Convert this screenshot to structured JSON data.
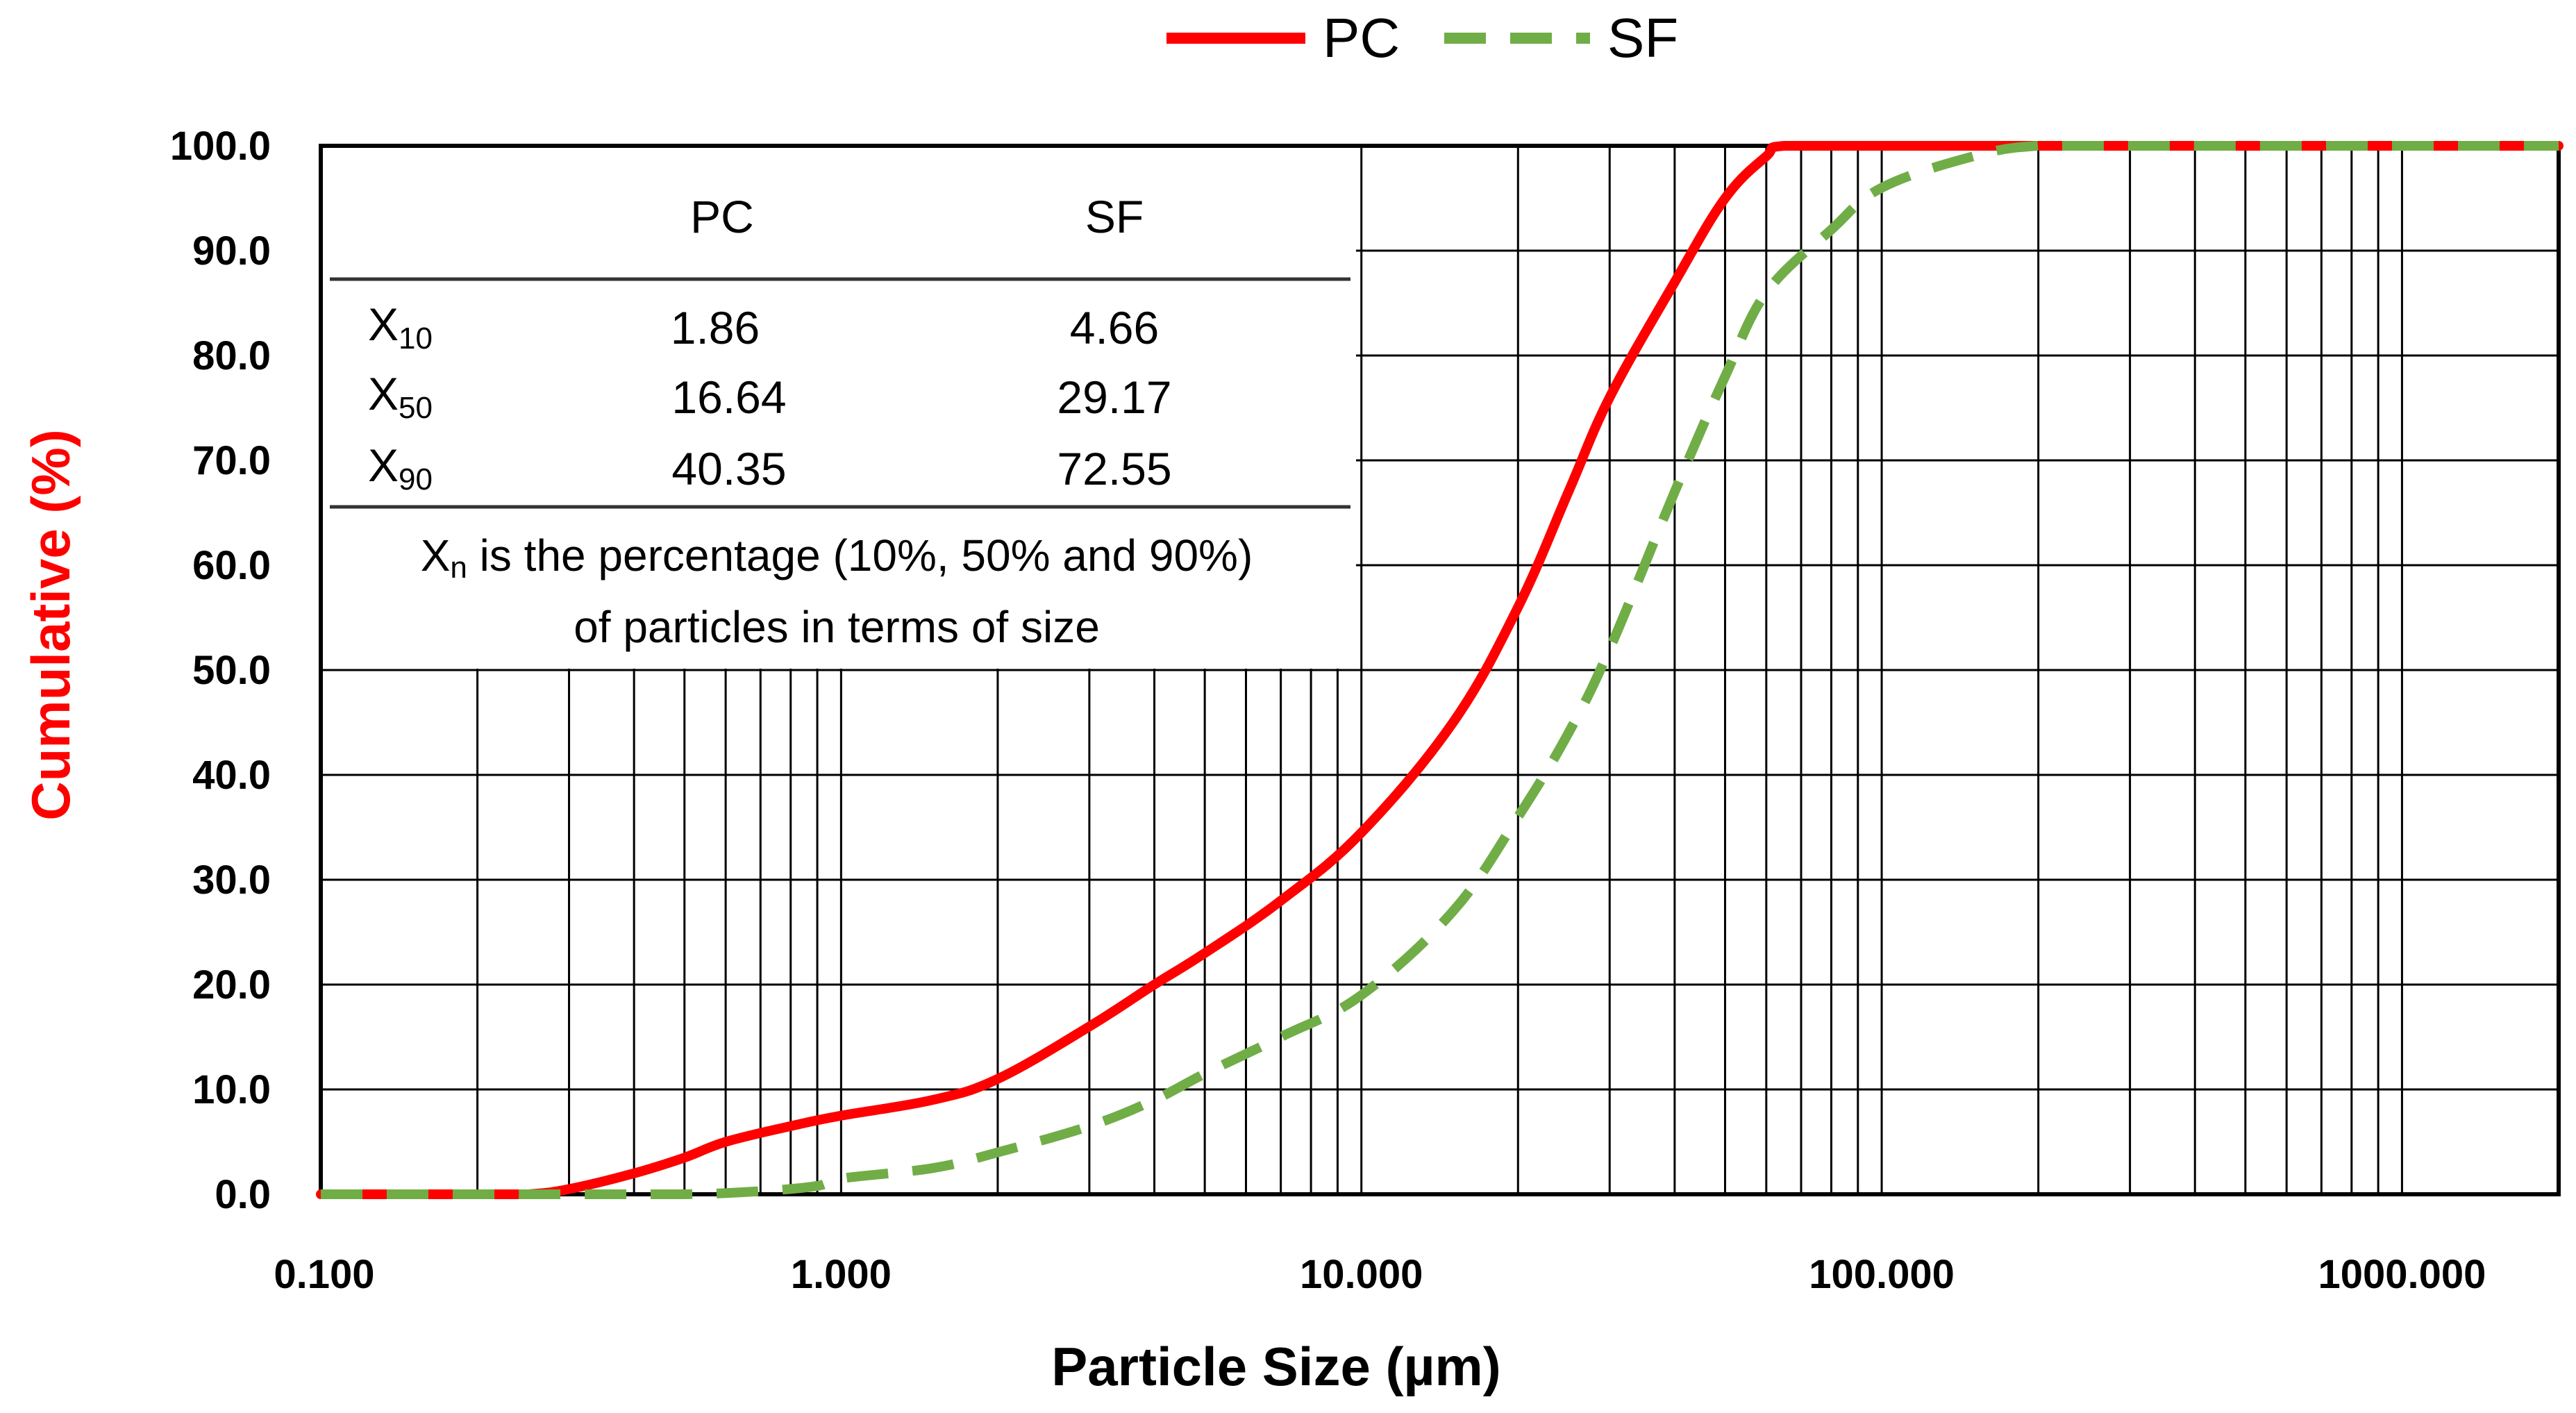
{
  "chart_data": {
    "type": "line",
    "xscale": "log",
    "xlabel": "Particle Size (µm)",
    "ylabel": "Cumulative  (%)",
    "xlim": [
      0.1,
      2000
    ],
    "ylim": [
      0,
      100
    ],
    "grid": true,
    "legend_position": "top-center",
    "x_tick_labels": [
      {
        "value": 0.1,
        "label": "0.100"
      },
      {
        "value": 1,
        "label": "1.000"
      },
      {
        "value": 10,
        "label": "10.000"
      },
      {
        "value": 100,
        "label": "100.000"
      },
      {
        "value": 1000,
        "label": "1000.000"
      }
    ],
    "y_tick_labels": [
      {
        "value": 0,
        "label": "0.0"
      },
      {
        "value": 10,
        "label": "10.0"
      },
      {
        "value": 20,
        "label": "20.0"
      },
      {
        "value": 30,
        "label": "30.0"
      },
      {
        "value": 40,
        "label": "40.0"
      },
      {
        "value": 50,
        "label": "50.0"
      },
      {
        "value": 60,
        "label": "60.0"
      },
      {
        "value": 70,
        "label": "70.0"
      },
      {
        "value": 80,
        "label": "80.0"
      },
      {
        "value": 90,
        "label": "90.0"
      },
      {
        "value": 100,
        "label": "100.0"
      }
    ],
    "series": [
      {
        "name": "PC",
        "color": "#ff0000",
        "dash": "solid",
        "x": [
          0.1,
          0.2,
          0.25,
          0.3,
          0.4,
          0.5,
          0.6,
          0.8,
          1.0,
          1.5,
          2.0,
          3.0,
          4.0,
          5.0,
          7.0,
          10.0,
          15.0,
          20.0,
          25.0,
          30.0,
          40.0,
          50.0,
          60.0,
          65.0,
          100.0,
          1000.0,
          2000.0
        ],
        "values": [
          0,
          0,
          0,
          0.5,
          2,
          3.5,
          5,
          6.5,
          7.5,
          9,
          11,
          16,
          20,
          23,
          28,
          34.5,
          45,
          56,
          67,
          76,
          87,
          95,
          99,
          100,
          100,
          100,
          100
        ]
      },
      {
        "name": "SF",
        "color": "#70ad47",
        "dash": "dashed",
        "x": [
          0.1,
          0.3,
          0.5,
          0.7,
          0.9,
          1.0,
          1.5,
          2.0,
          3.0,
          4.0,
          5.0,
          7.0,
          10.0,
          15.0,
          20.0,
          25.0,
          30.0,
          40.0,
          50.0,
          60.0,
          80.0,
          100.0,
          150.0,
          200.0,
          300.0,
          1000.0,
          2000.0
        ],
        "values": [
          0,
          0,
          0,
          0.3,
          0.8,
          1.5,
          2.5,
          4,
          6.5,
          9,
          11.5,
          15,
          19,
          27,
          36,
          44,
          52,
          67,
          78,
          86,
          92,
          96,
          99,
          100,
          100,
          100,
          100
        ]
      }
    ]
  },
  "legend": {
    "pc_label": "PC",
    "sf_label": "SF"
  },
  "inset_table": {
    "headers": [
      "",
      "PC",
      "SF"
    ],
    "rows": [
      {
        "label_main": "X",
        "label_sub": "10",
        "pc": "1.86",
        "sf": "4.66"
      },
      {
        "label_main": "X",
        "label_sub": "50",
        "pc": "16.64",
        "sf": "29.17"
      },
      {
        "label_main": "X",
        "label_sub": "90",
        "pc": "40.35",
        "sf": "72.55"
      }
    ],
    "note_main": "X",
    "note_sub": "n",
    "note_rest": " is the percentage (10%, 50% and 90%)",
    "note_line2": "of particles in terms of size"
  },
  "colors": {
    "pc": "#ff0000",
    "sf": "#70ad47",
    "ylabel": "#ff0000",
    "grid": "#000000"
  }
}
